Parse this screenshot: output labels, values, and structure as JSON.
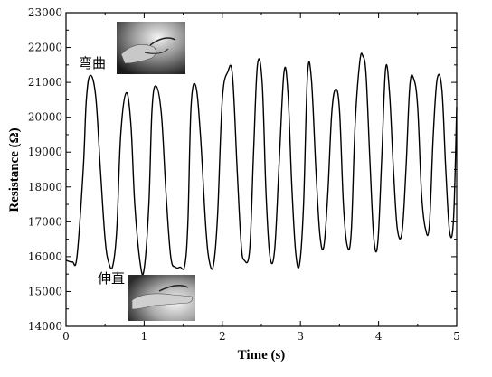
{
  "chart_data": {
    "type": "line",
    "title": "",
    "xlabel": "Time (s)",
    "ylabel": "Resistance (Ω)",
    "xlim": [
      0,
      5
    ],
    "ylim": [
      14000,
      23000
    ],
    "x_ticks": [
      0,
      1,
      2,
      3,
      4,
      5
    ],
    "y_ticks": [
      14000,
      15000,
      16000,
      17000,
      18000,
      19000,
      20000,
      21000,
      22000,
      23000
    ],
    "grid": false,
    "legend": "none",
    "line_color": "#000000",
    "series": [
      {
        "x": [
          0.0,
          0.08,
          0.14,
          0.22,
          0.26,
          0.31,
          0.38,
          0.44,
          0.5,
          0.55,
          0.6,
          0.65,
          0.7,
          0.77,
          0.83,
          0.88,
          0.95,
          1.0,
          1.06,
          1.1,
          1.15,
          1.22,
          1.28,
          1.34,
          1.4,
          1.46,
          1.52,
          1.56,
          1.6,
          1.66,
          1.72,
          1.79,
          1.84,
          1.89,
          1.94,
          2.0,
          2.07,
          2.13,
          2.19,
          2.24,
          2.28,
          2.35,
          2.4,
          2.45,
          2.51,
          2.56,
          2.61,
          2.67,
          2.73,
          2.79,
          2.84,
          2.89,
          2.94,
          2.99,
          3.04,
          3.09,
          3.14,
          3.2,
          3.25,
          3.3,
          3.35,
          3.4,
          3.45,
          3.5,
          3.55,
          3.6,
          3.65,
          3.7,
          3.76,
          3.8,
          3.84,
          3.89,
          3.94,
          3.99,
          4.04,
          4.09,
          4.14,
          4.19,
          4.24,
          4.3,
          4.35,
          4.4,
          4.45,
          4.5,
          4.55,
          4.6,
          4.65,
          4.7,
          4.75,
          4.81,
          4.86,
          4.91,
          4.96,
          5.0
        ],
        "y": [
          15900,
          15850,
          16000,
          18500,
          20500,
          21200,
          20600,
          18500,
          16500,
          15800,
          15750,
          16800,
          19500,
          20700,
          19800,
          17500,
          15800,
          15650,
          17500,
          20200,
          20900,
          20100,
          17800,
          16000,
          15700,
          15700,
          15750,
          17000,
          20300,
          20900,
          19500,
          16800,
          15800,
          15800,
          17200,
          20500,
          21300,
          21200,
          18500,
          16400,
          15900,
          16200,
          19000,
          21500,
          21000,
          17800,
          16000,
          16200,
          18800,
          21300,
          20700,
          18000,
          16100,
          15800,
          17500,
          21200,
          21100,
          18400,
          16600,
          16300,
          17800,
          20100,
          20800,
          20200,
          17500,
          16300,
          16700,
          19800,
          21600,
          21750,
          21200,
          18700,
          16500,
          16400,
          18800,
          21400,
          20700,
          18500,
          16800,
          16700,
          18500,
          20900,
          21100,
          20300,
          17800,
          16800,
          16900,
          19500,
          21100,
          20800,
          18500,
          16700,
          17100,
          20300
        ]
      }
    ],
    "annotations": [
      {
        "text": "弯曲"
      },
      {
        "text": "伸直"
      }
    ]
  }
}
